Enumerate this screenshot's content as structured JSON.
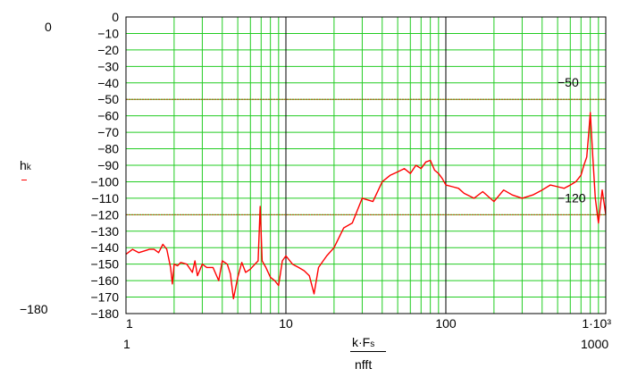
{
  "chart_data": {
    "type": "line",
    "x_scale": "log",
    "xlim": [
      1,
      1000
    ],
    "ylim": [
      -180,
      0
    ],
    "grid": true,
    "grid_color": "#22cc22",
    "series_color": "#ff0000",
    "marker_line_color": "#c04000",
    "x_ticks": [
      1,
      10,
      100,
      "1·10³"
    ],
    "y_ticks": [
      0,
      -10,
      -20,
      -30,
      -40,
      -50,
      -60,
      -70,
      -80,
      -90,
      -100,
      -110,
      -120,
      -130,
      -140,
      -150,
      -160,
      -170,
      -180
    ],
    "y_ticks_labels": [
      "0",
      "−10",
      "−20",
      "−30",
      "−40",
      "−50",
      "−60",
      "−70",
      "−80",
      "−90",
      "−100",
      "−110",
      "−120",
      "−130",
      "−140",
      "−150",
      "−160",
      "−170",
      "−180"
    ],
    "markers": [
      {
        "value": -50,
        "label": "−50"
      },
      {
        "value": -120,
        "label": "−120"
      }
    ],
    "y_axis": {
      "label_main": "h",
      "label_sub": "k",
      "range_top": "0",
      "range_bottom": "−180"
    },
    "x_axis": {
      "range_left": "1",
      "range_right": "1000",
      "expr_num_main": "k·F",
      "expr_num_sub": "s",
      "expr_den": "nfft"
    },
    "series": [
      {
        "x": [
          1,
          1.1,
          1.2,
          1.3,
          1.4,
          1.5,
          1.6,
          1.7,
          1.8,
          1.9,
          1.95,
          2.0,
          2.1,
          2.2,
          2.4,
          2.6,
          2.7,
          2.8,
          3.0,
          3.2,
          3.5,
          3.8,
          4.0,
          4.3,
          4.5,
          4.7,
          5.0,
          5.3,
          5.6,
          6.0,
          6.4,
          6.7,
          6.9,
          7.1,
          7.5,
          8.0,
          8.5,
          9.0,
          9.5,
          10,
          11,
          12,
          13,
          14,
          15,
          16,
          18,
          20,
          23,
          26,
          30,
          35,
          40,
          45,
          50,
          55,
          60,
          65,
          70,
          75,
          80,
          85,
          90,
          95,
          100,
          110,
          120,
          130,
          150,
          170,
          200,
          230,
          260,
          300,
          350,
          400,
          450,
          500,
          550,
          600,
          650,
          700,
          730,
          760,
          780,
          800,
          830,
          860,
          900,
          950,
          1000
        ],
        "y": [
          -144,
          -141,
          -143,
          -142,
          -141,
          -141,
          -143,
          -138,
          -141,
          -152,
          -162,
          -150,
          -151,
          -149,
          -150,
          -155,
          -148,
          -157,
          -150,
          -152,
          -152,
          -160,
          -148,
          -150,
          -156,
          -171,
          -158,
          -149,
          -155,
          -153,
          -150,
          -148,
          -115,
          -148,
          -152,
          -158,
          -160,
          -163,
          -148,
          -145,
          -150,
          -152,
          -154,
          -157,
          -168,
          -152,
          -145,
          -140,
          -128,
          -125,
          -110,
          -112,
          -100,
          -96,
          -94,
          -92,
          -95,
          -90,
          -92,
          -88,
          -87,
          -93,
          -95,
          -98,
          -102,
          -103,
          -104,
          -107,
          -110,
          -106,
          -112,
          -105,
          -108,
          -110,
          -108,
          -105,
          -102,
          -103,
          -104,
          -102,
          -100,
          -96,
          -90,
          -85,
          -72,
          -58,
          -85,
          -110,
          -125,
          -105,
          -120
        ]
      }
    ]
  }
}
